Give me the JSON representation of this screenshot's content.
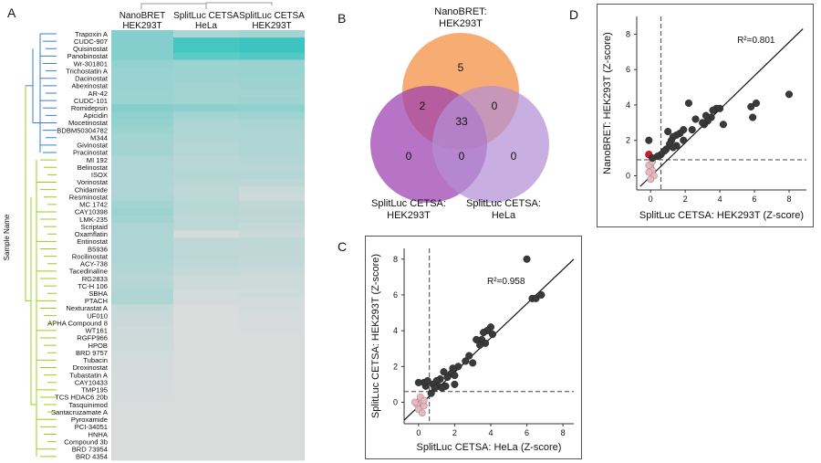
{
  "panels": {
    "a": "A",
    "b": "B",
    "c": "C",
    "d": "D"
  },
  "chart_data": [
    {
      "panel": "A",
      "type": "heatmap",
      "ylabel": "Sample Name",
      "columns": [
        "NanoBRET\nHEK293T",
        "SplitLuc CETSA\nHeLa",
        "SplitLuc CETSA\nHEK293T"
      ],
      "rows": [
        "Trapoxin A",
        "CUDC-907",
        "Quisinostat",
        "Panobinostat",
        "Wr-301801",
        "Trichostatin A",
        "Dacinostat",
        "Abexinostat",
        "AR-42",
        "CUDC-101",
        "Romidepsin",
        "Apicidin",
        "Mocetinostat",
        "BDBM50304782",
        "M344",
        "Givinostat",
        "Pracinostat",
        "MI 192",
        "Belinostat",
        "ISOX",
        "Vorinostat",
        "Chidamide",
        "Resminostat",
        "MC 1742",
        "CAY10398",
        "LMK-235",
        "Scriptaid",
        "Oxamflatin",
        "Entinostat",
        "B5936",
        "Rocilinostat",
        "ACY-738",
        "Tacedinaline",
        "RG2833",
        "TC-H 106",
        "SBHA",
        "PTACH",
        "Nexturastat A",
        "UF010",
        "APHA Compound 8",
        "WT161",
        "RGFP966",
        "HPOB",
        "BRD 9757",
        "Tubacin",
        "Droxinostat",
        "Tubastatin A",
        "CAY10433",
        "TMP195",
        "TCS HDAC6 20b",
        "Tasquinimod",
        "Santacruzamate A",
        "Pyroxamide",
        "PCI-34051",
        "HNHA",
        "Compound 3b",
        "BRD 73954",
        "BRD 4354"
      ],
      "values": [
        [
          0.55,
          0.3,
          0.35
        ],
        [
          0.55,
          0.95,
          1.0
        ],
        [
          0.55,
          0.95,
          1.0
        ],
        [
          0.55,
          0.8,
          0.85
        ],
        [
          0.45,
          0.4,
          0.42
        ],
        [
          0.42,
          0.4,
          0.42
        ],
        [
          0.42,
          0.38,
          0.4
        ],
        [
          0.42,
          0.35,
          0.38
        ],
        [
          0.4,
          0.35,
          0.36
        ],
        [
          0.4,
          0.36,
          0.38
        ],
        [
          0.55,
          0.5,
          0.48
        ],
        [
          0.48,
          0.35,
          0.38
        ],
        [
          0.45,
          0.3,
          0.32
        ],
        [
          0.4,
          0.3,
          0.3
        ],
        [
          0.35,
          0.28,
          0.28
        ],
        [
          0.35,
          0.25,
          0.28
        ],
        [
          0.35,
          0.25,
          0.28
        ],
        [
          0.3,
          0.22,
          0.25
        ],
        [
          0.3,
          0.22,
          0.22
        ],
        [
          0.3,
          0.25,
          0.25
        ],
        [
          0.3,
          0.22,
          0.2
        ],
        [
          0.28,
          0.2,
          0.12
        ],
        [
          0.3,
          0.2,
          0.1
        ],
        [
          0.35,
          0.22,
          0.18
        ],
        [
          0.4,
          0.22,
          0.2
        ],
        [
          0.35,
          0.2,
          0.18
        ],
        [
          0.3,
          0.2,
          0.15
        ],
        [
          0.3,
          0.05,
          0.12
        ],
        [
          0.3,
          0.2,
          0.18
        ],
        [
          0.3,
          0.2,
          0.18
        ],
        [
          0.3,
          0.2,
          0.18
        ],
        [
          0.28,
          0.18,
          0.16
        ],
        [
          0.25,
          0.15,
          0.12
        ],
        [
          0.22,
          0.1,
          0.1
        ],
        [
          0.25,
          0.1,
          0.1
        ],
        [
          0.28,
          0.05,
          0.08
        ],
        [
          0.3,
          0.05,
          0.05
        ],
        [
          0.15,
          0.02,
          0.05
        ],
        [
          0.12,
          0.02,
          0.04
        ],
        [
          0.12,
          0.02,
          0.03
        ],
        [
          0.1,
          0.02,
          0.03
        ],
        [
          0.1,
          0.02,
          0.02
        ],
        [
          0.1,
          0.02,
          0.02
        ],
        [
          0.08,
          0.02,
          0.02
        ],
        [
          0.06,
          0.02,
          0.02
        ],
        [
          0.06,
          0.02,
          0.02
        ],
        [
          0.05,
          0.02,
          0.02
        ],
        [
          0.04,
          0.02,
          0.02
        ],
        [
          0.03,
          0.02,
          0.02
        ],
        [
          0.03,
          0.02,
          0.02
        ],
        [
          0.02,
          0.02,
          0.02
        ],
        [
          0.02,
          0.02,
          0.02
        ],
        [
          0.02,
          0.02,
          0.02
        ],
        [
          0.02,
          0.02,
          0.02
        ],
        [
          0.02,
          0.02,
          0.02
        ],
        [
          0.02,
          0.02,
          0.02
        ],
        [
          0.02,
          0.02,
          0.02
        ],
        [
          0.02,
          0.02,
          0.02
        ]
      ],
      "colors": {
        "low": "#dcdcdc",
        "high": "#3cc5c0",
        "dendro_blue": "#3a7fd0",
        "dendro_green": "#9ccc1a",
        "dendro_grey": "#9a9a9a"
      }
    },
    {
      "panel": "B",
      "type": "venn",
      "sets": [
        {
          "label": "NanoBRET:\nHEK293T",
          "color": "#f28c3c"
        },
        {
          "label": "SplitLuc CETSA:\nHEK293T",
          "color": "#9b3fb0"
        },
        {
          "label": "SplitLuc CETSA:\nHeLa",
          "color": "#b48fd6"
        }
      ],
      "regions": {
        "nano_only": "5",
        "nano_hek": "2",
        "all_three": "33",
        "nano_hela": "0",
        "hek_only": "0",
        "hek_hela": "0",
        "hela_only": "0"
      }
    },
    {
      "panel": "C",
      "type": "scatter",
      "xlabel": "SplitLuc CETSA: HeLa (Z-score)",
      "ylabel": "SplitLuc CETSA: HEK293T (Z-score)",
      "annotation": "R²=0.958",
      "xlim": [
        -0.8,
        8.6
      ],
      "ylim": [
        -1.2,
        8.6
      ],
      "xticks": [
        "0",
        "2",
        "4",
        "6",
        "8"
      ],
      "yticks": [
        "0",
        "2",
        "4",
        "6",
        "8"
      ],
      "threshold_x": 0.6,
      "threshold_y": 0.6,
      "fit_line": [
        [
          -0.8,
          -1.0
        ],
        [
          8.6,
          8.0
        ]
      ],
      "points": [
        [
          6.0,
          8.0
        ],
        [
          6.3,
          5.8
        ],
        [
          6.5,
          5.8
        ],
        [
          6.8,
          6.0
        ],
        [
          4.0,
          4.2
        ],
        [
          3.8,
          4.0
        ],
        [
          3.6,
          3.9
        ],
        [
          4.1,
          3.8
        ],
        [
          3.5,
          3.5
        ],
        [
          3.2,
          3.5
        ],
        [
          3.7,
          3.3
        ],
        [
          3.4,
          3.2
        ],
        [
          2.8,
          2.6
        ],
        [
          3.0,
          2.2
        ],
        [
          2.6,
          2.3
        ],
        [
          2.2,
          2.0
        ],
        [
          1.9,
          1.9
        ],
        [
          1.8,
          1.6
        ],
        [
          2.0,
          1.5
        ],
        [
          1.6,
          1.4
        ],
        [
          1.4,
          1.7
        ],
        [
          1.2,
          1.3
        ],
        [
          1.0,
          1.2
        ],
        [
          1.1,
          0.9
        ],
        [
          0.8,
          1.0
        ],
        [
          0.9,
          0.8
        ],
        [
          0.4,
          0.9
        ],
        [
          0.3,
          1.1
        ],
        [
          0.5,
          1.2
        ],
        [
          0.0,
          1.1
        ],
        [
          2.0,
          1.0
        ],
        [
          1.5,
          0.9
        ],
        [
          1.3,
          0.8
        ],
        [
          0.7,
          0.5
        ]
      ],
      "ref_points": [
        [
          0.1,
          0.2
        ],
        [
          0.2,
          0.0
        ],
        [
          -0.1,
          -0.1
        ],
        [
          0.3,
          -0.2
        ],
        [
          0.0,
          -0.4
        ],
        [
          0.2,
          -0.6
        ],
        [
          0.1,
          0.3
        ],
        [
          -0.2,
          0.0
        ],
        [
          0.3,
          0.1
        ]
      ],
      "colors": {
        "point": "#3a3a3a",
        "ref": "#e6b8c0",
        "ref_highlight": "#d11a2a"
      }
    },
    {
      "panel": "D",
      "type": "scatter",
      "xlabel": "SplitLuc CETSA: HEK293T (Z-score)",
      "ylabel": "NanoBRET: HEK293T (Z-score)",
      "annotation": "R²=0.801",
      "xlim": [
        -0.8,
        9.0
      ],
      "ylim": [
        -0.8,
        9.0
      ],
      "xticks": [
        "0",
        "2",
        "4",
        "6",
        "8"
      ],
      "yticks": [
        "0",
        "2",
        "4",
        "6",
        "8"
      ],
      "threshold_x": 0.6,
      "threshold_y": 0.9,
      "fit_line": [
        [
          -0.6,
          -0.6
        ],
        [
          8.8,
          8.3
        ]
      ],
      "points": [
        [
          8.0,
          4.6
        ],
        [
          6.1,
          4.1
        ],
        [
          5.8,
          3.9
        ],
        [
          5.9,
          3.3
        ],
        [
          4.0,
          3.8
        ],
        [
          3.8,
          3.8
        ],
        [
          3.6,
          3.7
        ],
        [
          3.5,
          3.3
        ],
        [
          3.3,
          3.1
        ],
        [
          3.2,
          3.4
        ],
        [
          3.1,
          2.9
        ],
        [
          3.0,
          3.0
        ],
        [
          2.2,
          4.1
        ],
        [
          2.6,
          3.2
        ],
        [
          2.4,
          2.6
        ],
        [
          1.9,
          2.6
        ],
        [
          1.7,
          2.4
        ],
        [
          1.5,
          2.3
        ],
        [
          1.3,
          2.2
        ],
        [
          1.2,
          2.0
        ],
        [
          1.1,
          1.8
        ],
        [
          1.5,
          1.7
        ],
        [
          1.3,
          1.6
        ],
        [
          1.0,
          2.5
        ],
        [
          0.9,
          1.5
        ],
        [
          0.8,
          1.4
        ],
        [
          0.6,
          1.2
        ],
        [
          0.4,
          1.1
        ],
        [
          -0.1,
          2.0
        ],
        [
          0.1,
          1.0
        ],
        [
          1.9,
          2.0
        ],
        [
          4.2,
          2.9
        ]
      ],
      "ref_points": [
        [
          0.0,
          0.5
        ],
        [
          0.1,
          0.3
        ],
        [
          -0.1,
          0.6
        ],
        [
          0.2,
          0.0
        ],
        [
          0.0,
          -0.2
        ],
        [
          0.1,
          0.8
        ],
        [
          -0.1,
          0.2
        ]
      ],
      "ref_highlight": [
        -0.1,
        1.2
      ],
      "colors": {
        "point": "#3a3a3a",
        "ref": "#e6b8c0",
        "ref_highlight": "#d11a2a"
      }
    }
  ]
}
